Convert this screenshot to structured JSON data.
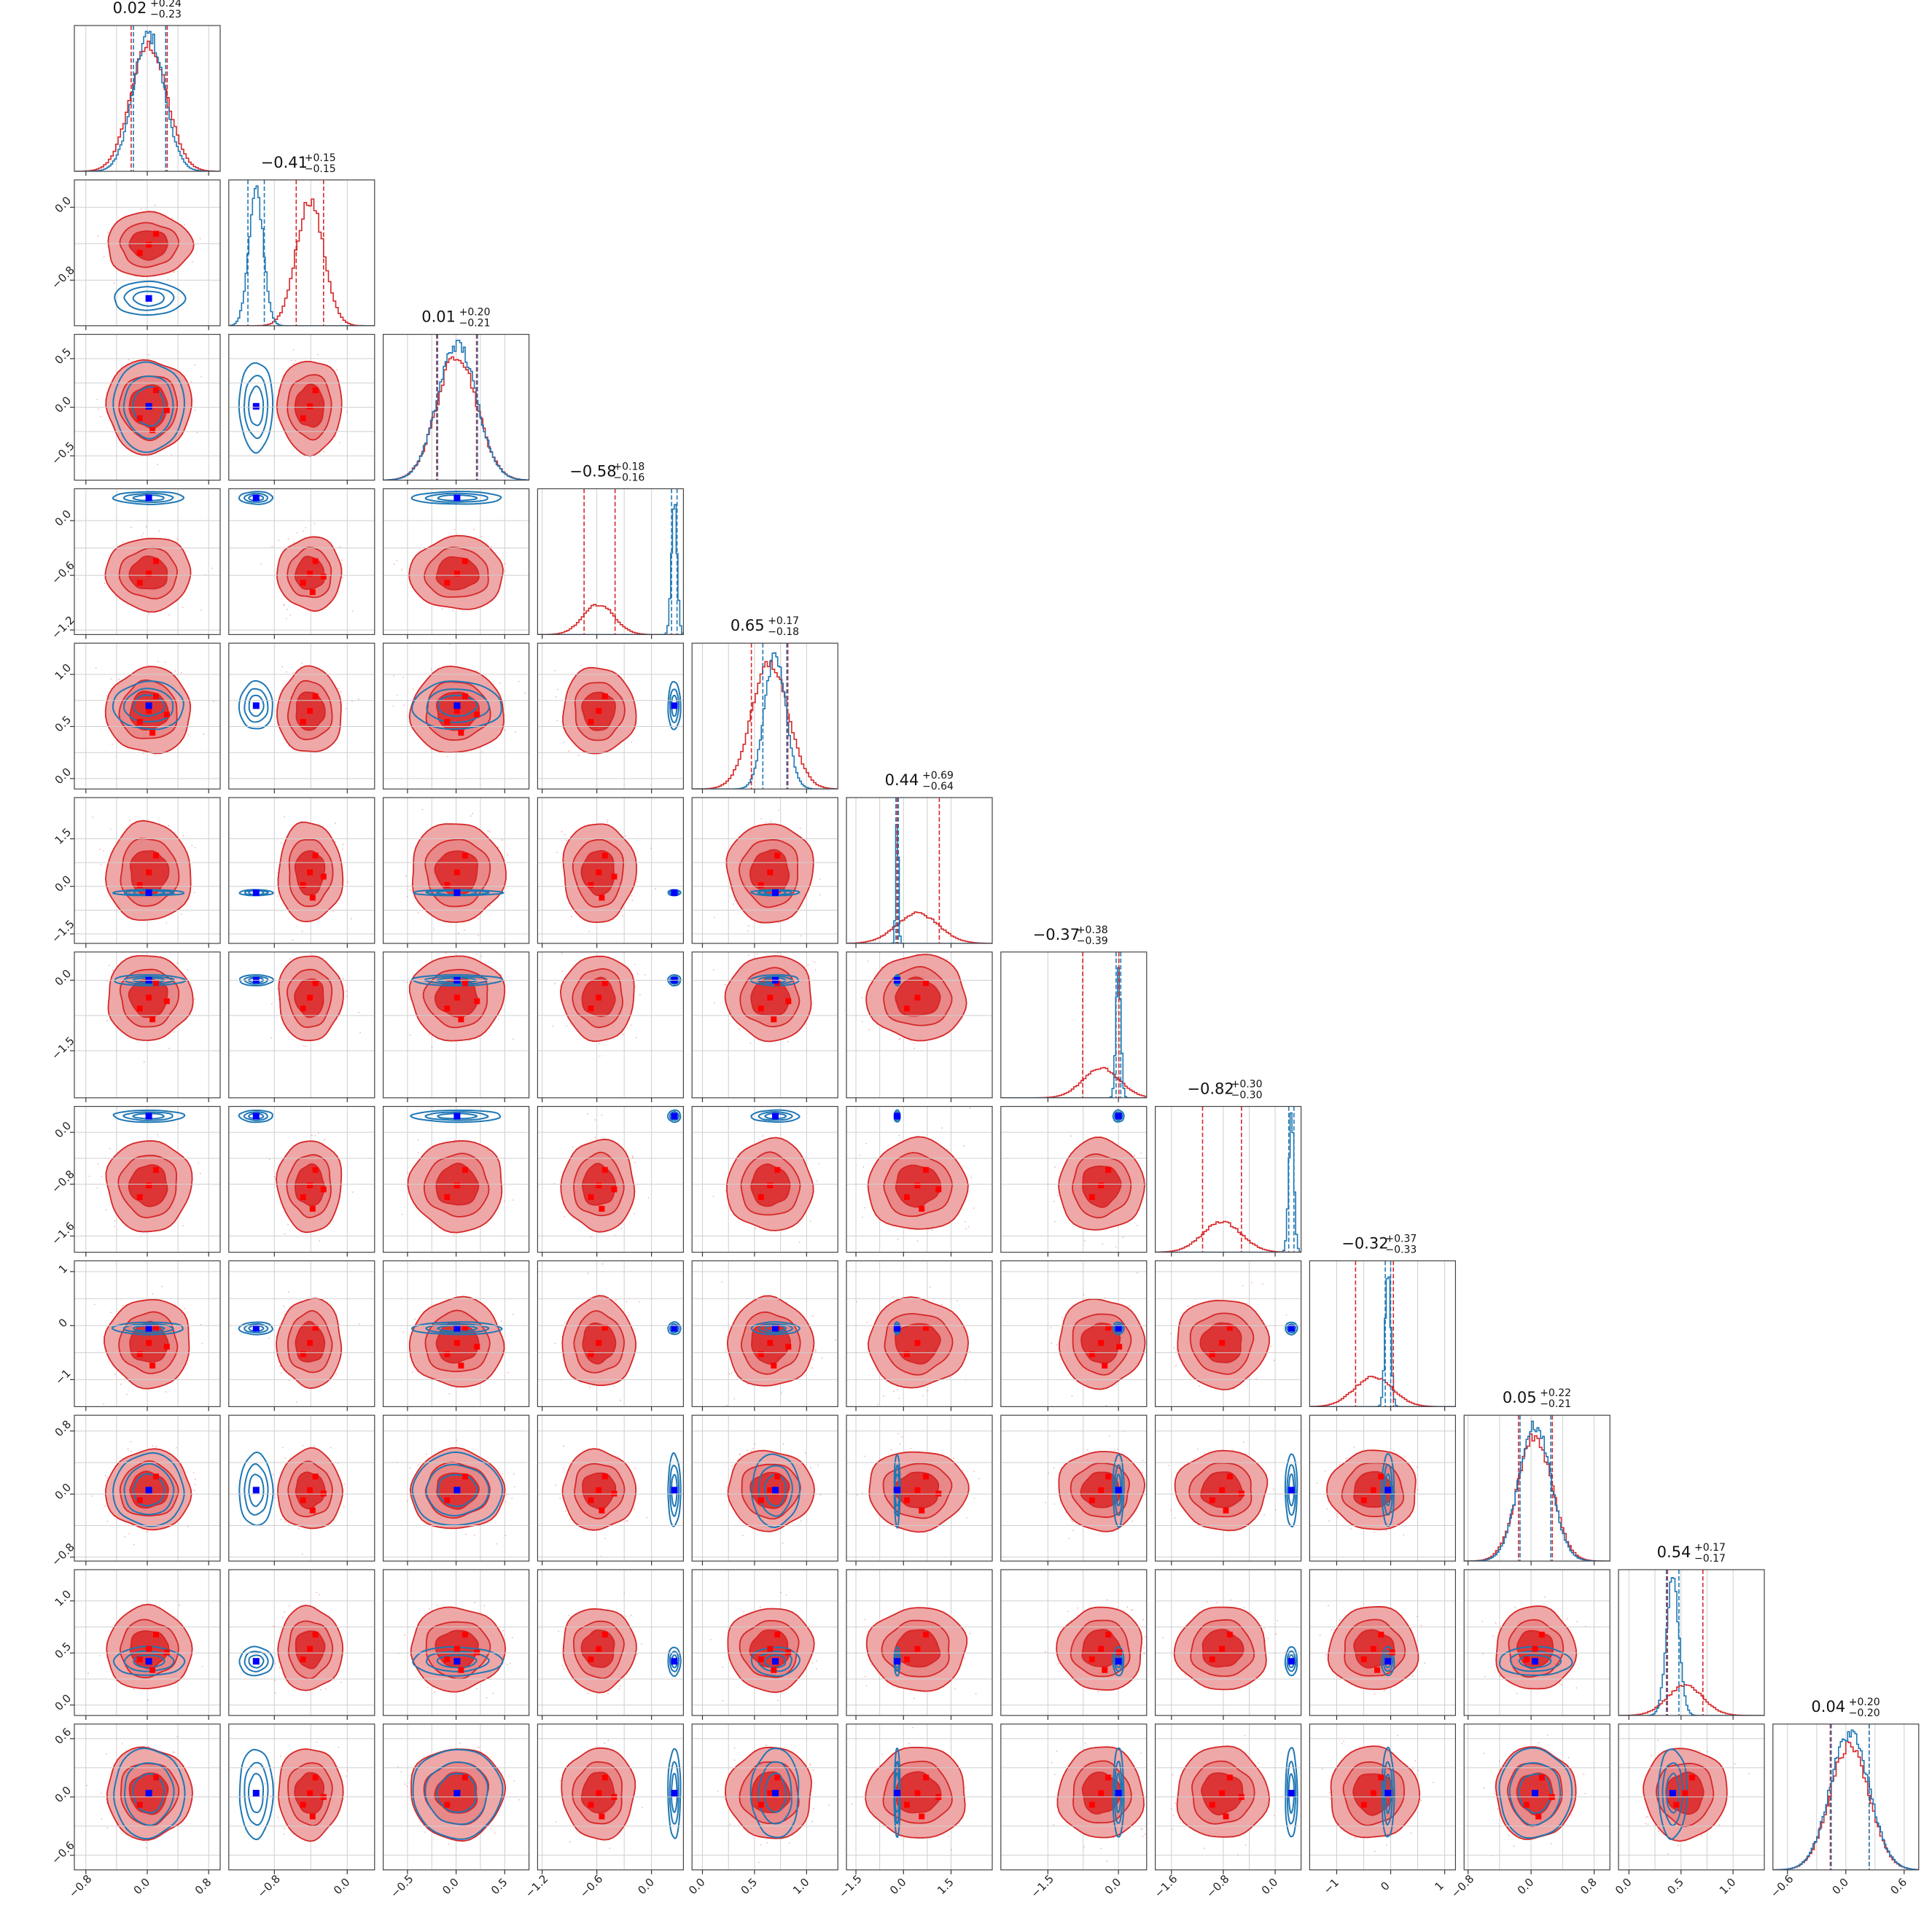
{
  "chart_data": {
    "type": "scatter",
    "subtype": "corner-plot",
    "grid": true,
    "series": [
      {
        "name": "",
        "color": "#d62728"
      },
      {
        "name": "",
        "color": "#1f77b4"
      }
    ],
    "params": [
      {
        "title": "0.02",
        "sup": "+0.24",
        "sub": "−0.23",
        "red_mean": 0.02,
        "red_sd": 0.235,
        "blue_mean": 0.02,
        "blue_sd": 0.2,
        "range": [
          -0.95,
          0.95
        ],
        "ticks": [
          -0.8,
          0.0,
          0.8
        ],
        "tick_labels": [
          "−0.8",
          "0.0",
          "0.8"
        ],
        "grid": [
          -0.4,
          0.4
        ],
        "red_q": [
          -0.21,
          0.26
        ],
        "blue_q": [
          -0.18,
          0.24
        ]
      },
      {
        "title": "−0.41",
        "sup": "+0.15",
        "sub": "−0.15",
        "red_mean": -0.41,
        "red_sd": 0.15,
        "blue_mean": -1.0,
        "blue_sd": 0.08,
        "range": [
          -1.3,
          0.3
        ],
        "ticks": [
          -0.8,
          0.0
        ],
        "tick_labels": [
          "−0.8",
          "0.0"
        ],
        "grid": [
          -0.4
        ],
        "red_q": [
          -0.56,
          -0.26
        ],
        "blue_q": [
          -1.09,
          -0.91
        ]
      },
      {
        "title": "0.01",
        "sup": "+0.20",
        "sub": "−0.21",
        "red_mean": 0.01,
        "red_sd": 0.205,
        "blue_mean": 0.01,
        "blue_sd": 0.2,
        "range": [
          -0.75,
          0.75
        ],
        "ticks": [
          -0.5,
          0.0,
          0.5
        ],
        "tick_labels": [
          "−0.5",
          "0.0",
          "0.5"
        ],
        "grid": [
          -0.25,
          0.25
        ],
        "red_q": [
          -0.2,
          0.21
        ],
        "blue_q": [
          -0.19,
          0.22
        ]
      },
      {
        "title": "−0.58",
        "sup": "+0.18",
        "sub": "−0.16",
        "red_mean": -0.58,
        "red_sd": 0.17,
        "blue_mean": 0.25,
        "blue_sd": 0.03,
        "range": [
          -1.25,
          0.35
        ],
        "ticks": [
          -1.2,
          -0.6,
          0.0
        ],
        "tick_labels": [
          "−1.2",
          "−0.6",
          "0.0"
        ],
        "grid": [
          -0.3
        ],
        "red_q": [
          -0.74,
          -0.4
        ],
        "blue_q": [
          0.22,
          0.28
        ]
      },
      {
        "title": "0.65",
        "sup": "+0.17",
        "sub": "−0.18",
        "red_mean": 0.65,
        "red_sd": 0.175,
        "blue_mean": 0.7,
        "blue_sd": 0.1,
        "range": [
          -0.1,
          1.3
        ],
        "ticks": [
          0.0,
          0.5,
          1.0
        ],
        "tick_labels": [
          "0.0",
          "0.5",
          "1.0"
        ],
        "grid": [
          0.25,
          0.75
        ],
        "red_q": [
          0.47,
          0.82
        ],
        "blue_q": [
          0.58,
          0.81
        ]
      },
      {
        "title": "0.44",
        "sup": "+0.69",
        "sub": "−0.64",
        "red_mean": 0.44,
        "red_sd": 0.665,
        "blue_mean": -0.2,
        "blue_sd": 0.04,
        "range": [
          -1.8,
          2.8
        ],
        "ticks": [
          -1.5,
          0.0,
          1.5
        ],
        "tick_labels": [
          "−1.5",
          "0.0",
          "1.5"
        ],
        "grid": [
          -0.75,
          0.75
        ],
        "red_q": [
          -0.2,
          1.13
        ],
        "blue_q": [
          -0.24,
          -0.16
        ]
      },
      {
        "title": "−0.37",
        "sup": "+0.38",
        "sub": "−0.39",
        "red_mean": -0.37,
        "red_sd": 0.385,
        "blue_mean": 0.0,
        "blue_sd": 0.05,
        "range": [
          -2.5,
          0.6
        ],
        "ticks": [
          -1.5,
          0.0
        ],
        "tick_labels": [
          "−1.5",
          "0.0"
        ],
        "grid": [
          -0.75
        ],
        "red_q": [
          -0.76,
          0.01
        ],
        "blue_q": [
          -0.05,
          0.05
        ]
      },
      {
        "title": "−0.82",
        "sup": "+0.30",
        "sub": "−0.30",
        "red_mean": -0.82,
        "red_sd": 0.3,
        "blue_mean": 0.25,
        "blue_sd": 0.04,
        "range": [
          -1.85,
          0.4
        ],
        "ticks": [
          -1.6,
          -0.8,
          0.0
        ],
        "tick_labels": [
          "−1.6",
          "−0.8",
          "0.0"
        ],
        "grid": [
          -0.4
        ],
        "red_q": [
          -1.12,
          -0.52
        ],
        "blue_q": [
          0.21,
          0.29
        ]
      },
      {
        "title": "−0.32",
        "sup": "+0.37",
        "sub": "−0.33",
        "red_mean": -0.32,
        "red_sd": 0.35,
        "blue_mean": -0.05,
        "blue_sd": 0.05,
        "range": [
          -1.5,
          1.2
        ],
        "ticks": [
          -1.0,
          0.0,
          1.0
        ],
        "tick_labels": [
          "−1",
          "0",
          "1"
        ],
        "grid": [
          -0.5,
          0.5
        ],
        "red_q": [
          -0.65,
          0.05
        ],
        "blue_q": [
          -0.1,
          0.0
        ]
      },
      {
        "title": "0.05",
        "sup": "+0.22",
        "sub": "−0.21",
        "red_mean": 0.05,
        "red_sd": 0.215,
        "blue_mean": 0.05,
        "blue_sd": 0.2,
        "range": [
          -0.85,
          1.0
        ],
        "ticks": [
          -0.8,
          0.0,
          0.8
        ],
        "tick_labels": [
          "−0.8",
          "0.0",
          "0.8"
        ],
        "grid": [
          -0.4,
          0.4
        ],
        "red_q": [
          -0.16,
          0.27
        ],
        "blue_q": [
          -0.14,
          0.25
        ]
      },
      {
        "title": "0.54",
        "sup": "+0.17",
        "sub": "−0.17",
        "red_mean": 0.54,
        "red_sd": 0.17,
        "blue_mean": 0.42,
        "blue_sd": 0.06,
        "range": [
          -0.1,
          1.3
        ],
        "ticks": [
          0.0,
          0.5,
          1.0
        ],
        "tick_labels": [
          "0.0",
          "0.5",
          "1.0"
        ],
        "grid": [
          0.25,
          0.75
        ],
        "red_q": [
          0.37,
          0.71
        ],
        "blue_q": [
          0.36,
          0.48
        ]
      },
      {
        "title": "0.04",
        "sup": "+0.20",
        "sub": "−0.20",
        "red_mean": 0.04,
        "red_sd": 0.2,
        "blue_mean": 0.04,
        "blue_sd": 0.2,
        "range": [
          -0.75,
          0.75
        ],
        "ticks": [
          -0.6,
          0.0,
          0.6
        ],
        "tick_labels": [
          "−0.6",
          "0.0",
          "0.6"
        ],
        "grid": [
          -0.3,
          0.3
        ],
        "red_q": [
          -0.16,
          0.24
        ],
        "blue_q": [
          -0.15,
          0.24
        ]
      }
    ]
  }
}
